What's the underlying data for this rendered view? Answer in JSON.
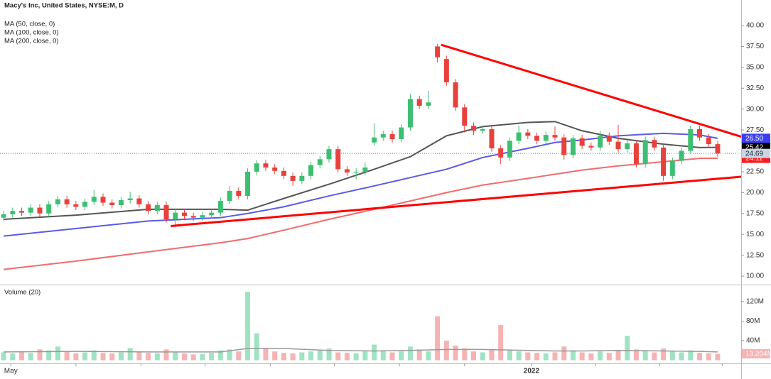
{
  "chart_data": {
    "type": "candlestick",
    "title": "Macy's Inc, United States, NYSE:M, D",
    "categories": [
      null,
      null,
      null,
      null,
      null,
      null,
      null,
      null,
      null,
      null,
      null,
      null,
      null,
      null,
      null,
      null,
      null,
      null,
      null,
      null,
      null,
      null,
      null,
      null,
      null,
      null,
      null,
      null,
      null,
      null,
      null,
      null,
      null,
      null,
      null,
      null,
      null,
      null,
      null,
      null,
      null,
      null,
      null,
      null,
      null,
      null,
      null,
      null,
      null,
      null,
      null,
      null,
      null,
      null,
      null,
      null,
      null,
      null,
      null,
      null,
      null,
      null,
      null,
      null,
      null,
      null,
      null,
      null,
      null,
      null,
      null,
      null,
      null,
      null,
      null,
      null,
      null,
      null,
      null,
      null
    ],
    "open": [
      17.0,
      17.4,
      17.8,
      17.6,
      18.2,
      17.5,
      18.6,
      19.2,
      18.6,
      18.3,
      18.9,
      19.5,
      18.8,
      18.5,
      19.1,
      19.3,
      18.6,
      17.8,
      18.5,
      16.8,
      17.6,
      17.2,
      17.0,
      17.3,
      17.6,
      19.0,
      20.2,
      19.6,
      22.5,
      23.5,
      23.0,
      22.6,
      22.0,
      21.4,
      22.0,
      23.3,
      24.0,
      25.2,
      22.8,
      22.4,
      22.5,
      26.0,
      26.6,
      27.0,
      26.4,
      27.8,
      31.2,
      30.4,
      37.5,
      36.0,
      33.2,
      30.2,
      28.0,
      27.4,
      27.6,
      25.3,
      24.2,
      26.2,
      27.2,
      26.8,
      26.2,
      26.9,
      26.6,
      24.5,
      26.5,
      25.6,
      25.4,
      26.8,
      26.1,
      25.2,
      25.9,
      23.4,
      26.3,
      25.4,
      22.0,
      23.8,
      25.0,
      27.6,
      26.6,
      25.8
    ],
    "high": [
      17.8,
      18.2,
      18.2,
      18.6,
      18.6,
      19.0,
      19.6,
      19.6,
      19.0,
      19.3,
      20.3,
      19.9,
      19.2,
      19.5,
      20.1,
      19.7,
      19.0,
      18.9,
      18.9,
      18.0,
      18.0,
      17.6,
      17.7,
      18.0,
      19.4,
      20.8,
      20.6,
      22.9,
      23.9,
      23.9,
      23.4,
      23.0,
      22.4,
      22.4,
      23.7,
      24.4,
      25.6,
      25.6,
      23.2,
      22.9,
      23.6,
      28.3,
      27.4,
      27.4,
      28.2,
      31.8,
      31.6,
      32.2,
      37.8,
      36.4,
      33.6,
      30.6,
      28.4,
      28.0,
      28.0,
      25.7,
      26.6,
      28.0,
      27.6,
      27.2,
      27.3,
      27.9,
      27.0,
      26.9,
      26.9,
      26.0,
      27.4,
      27.2,
      28.1,
      26.3,
      26.3,
      26.7,
      26.7,
      25.8,
      24.2,
      25.4,
      28.0,
      28.0,
      27.0,
      26.2
    ],
    "low": [
      16.6,
      17.0,
      17.2,
      17.2,
      17.1,
      17.1,
      18.2,
      18.2,
      17.9,
      17.9,
      18.5,
      18.4,
      18.1,
      18.1,
      18.7,
      18.2,
      17.4,
      17.4,
      16.4,
      16.0,
      16.8,
      16.6,
      16.6,
      16.9,
      17.2,
      18.6,
      19.2,
      19.2,
      22.1,
      22.6,
      22.2,
      21.6,
      20.8,
      21.0,
      21.6,
      22.9,
      23.6,
      22.4,
      22.0,
      21.6,
      22.1,
      25.6,
      26.2,
      26.0,
      26.0,
      27.4,
      30.0,
      30.0,
      35.6,
      32.8,
      29.8,
      27.2,
      26.9,
      27.0,
      24.9,
      23.4,
      23.8,
      25.8,
      26.4,
      25.8,
      25.8,
      26.2,
      23.9,
      24.1,
      25.2,
      25.0,
      25.0,
      25.7,
      24.8,
      24.8,
      23.0,
      23.0,
      25.0,
      21.4,
      21.6,
      23.4,
      24.6,
      26.2,
      25.4,
      24.3
    ],
    "close": [
      17.4,
      17.8,
      17.6,
      18.2,
      17.5,
      18.6,
      19.2,
      18.6,
      18.3,
      18.9,
      19.5,
      18.8,
      18.5,
      19.1,
      19.3,
      18.6,
      17.8,
      18.5,
      16.8,
      17.6,
      17.2,
      17.0,
      17.3,
      17.6,
      19.0,
      20.2,
      19.6,
      22.5,
      23.5,
      23.0,
      22.6,
      22.0,
      21.4,
      22.0,
      23.3,
      24.0,
      25.2,
      22.8,
      22.4,
      22.5,
      23.0,
      26.6,
      27.0,
      26.4,
      27.8,
      31.2,
      30.4,
      30.8,
      36.2,
      33.2,
      30.2,
      28.0,
      27.4,
      27.6,
      25.3,
      24.2,
      26.2,
      27.2,
      26.8,
      26.2,
      26.9,
      26.6,
      24.5,
      26.5,
      25.6,
      25.4,
      26.8,
      26.1,
      25.2,
      25.9,
      23.4,
      26.3,
      25.4,
      22.0,
      23.8,
      25.0,
      27.6,
      26.6,
      25.8,
      24.69
    ],
    "up_color": "#3dbf72",
    "down_color": "#e8413c",
    "series": [
      {
        "name": "MA (50, close, 0)",
        "color": "#555555",
        "x": [
          0,
          8,
          16,
          24,
          27,
          31,
          36,
          41,
          45,
          49,
          53,
          58,
          61,
          64,
          68,
          73,
          77,
          79
        ],
        "values": [
          16.8,
          17.3,
          18.0,
          18.0,
          17.9,
          19.3,
          21.0,
          22.8,
          24.3,
          26.8,
          27.9,
          28.4,
          28.5,
          27.4,
          26.5,
          25.8,
          25.4,
          25.42
        ],
        "label_color": "#000000"
      },
      {
        "name": "MA (100, close, 0)",
        "color": "#5a5ae6",
        "x": [
          0,
          8,
          16,
          24,
          27,
          31,
          36,
          41,
          45,
          49,
          53,
          58,
          61,
          64,
          68,
          73,
          77,
          79
        ],
        "values": [
          14.8,
          15.7,
          16.6,
          17.0,
          17.5,
          18.3,
          19.6,
          20.8,
          21.8,
          22.8,
          24.2,
          25.3,
          26.0,
          26.3,
          26.8,
          27.1,
          26.9,
          26.5
        ],
        "last_label": "26.50",
        "label_color": "#3d3df0"
      },
      {
        "name": "MA (200, close, 0)",
        "color": "#f26b6b",
        "x": [
          0,
          8,
          16,
          24,
          27,
          31,
          36,
          41,
          45,
          49,
          53,
          58,
          61,
          64,
          68,
          73,
          77,
          79
        ],
        "values": [
          10.8,
          11.8,
          12.9,
          14.0,
          14.5,
          15.5,
          16.8,
          18.0,
          19.0,
          20.0,
          20.9,
          21.7,
          22.2,
          22.7,
          23.2,
          23.7,
          24.1,
          24.11
        ],
        "label_color": "#ff1a1a"
      }
    ],
    "trendlines": [
      {
        "color": "#ff0000",
        "x": [
          48.4,
          81.6
        ],
        "values": [
          37.7,
          26.7
        ]
      },
      {
        "color": "#ff0000",
        "x": [
          18.5,
          81.6
        ],
        "values": [
          16.0,
          21.9
        ]
      }
    ],
    "xlim": [
      -0.4,
      81.6
    ],
    "ylim": [
      9.07,
      43.06
    ],
    "yticks": [
      {
        "value": 10,
        "label": "10.00"
      },
      {
        "value": 12.5,
        "label": "12.50"
      },
      {
        "value": 15,
        "label": "15.00"
      },
      {
        "value": 17.5,
        "label": "17.50"
      },
      {
        "value": 20,
        "label": "20.00"
      },
      {
        "value": 22.5,
        "label": "22.50"
      },
      {
        "value": 25,
        "label": "25.00"
      },
      {
        "value": 27.5,
        "label": "27.50"
      },
      {
        "value": 30,
        "label": "30.00"
      },
      {
        "value": 32.5,
        "label": "32.50"
      },
      {
        "value": 35,
        "label": "35.00"
      },
      {
        "value": 37.5,
        "label": "37.50"
      },
      {
        "value": 40,
        "label": "40.00"
      }
    ],
    "xticks": [
      {
        "value": 0.8,
        "label": "May"
      },
      {
        "value": 58.4,
        "label": "2022"
      }
    ],
    "xminorticks": [
      8,
      15.2,
      22.3,
      29.5,
      36.6,
      43.8,
      51,
      65.5,
      72.6,
      79.5
    ],
    "volume": {
      "title": "Volume (20)",
      "values": [
        16,
        14,
        18,
        15,
        22,
        20,
        28,
        18,
        14,
        16,
        20,
        15,
        14,
        16,
        25,
        18,
        15,
        14,
        22,
        16,
        14,
        12,
        13,
        15,
        20,
        22,
        18,
        140,
        55,
        24,
        18,
        15,
        14,
        16,
        18,
        20,
        24,
        16,
        15,
        14,
        18,
        32,
        20,
        16,
        18,
        28,
        22,
        18,
        90,
        40,
        30,
        24,
        18,
        16,
        22,
        72,
        20,
        18,
        16,
        15,
        14,
        16,
        28,
        20,
        16,
        14,
        18,
        15,
        20,
        50,
        22,
        20,
        16,
        24,
        18,
        16,
        20,
        15,
        14,
        13.204
      ],
      "last_value_label": "13.204M",
      "up_color": "#9fe3c2",
      "down_color": "#f5b3b3",
      "ma": {
        "color": "#999999",
        "x": [
          0,
          8,
          16,
          24,
          27,
          31,
          36,
          41,
          45,
          49,
          53,
          58,
          61,
          64,
          68,
          73,
          77,
          79
        ],
        "values": [
          17,
          18,
          17,
          17,
          24,
          24,
          20,
          19,
          20,
          22,
          22,
          20,
          19,
          19,
          20,
          19,
          18,
          17
        ]
      },
      "ylim": [
        -6.5,
        149
      ],
      "yticks": [
        {
          "value": 40,
          "label": "40M"
        },
        {
          "value": 80,
          "label": "80M"
        },
        {
          "value": 120,
          "label": "120M"
        }
      ]
    }
  }
}
